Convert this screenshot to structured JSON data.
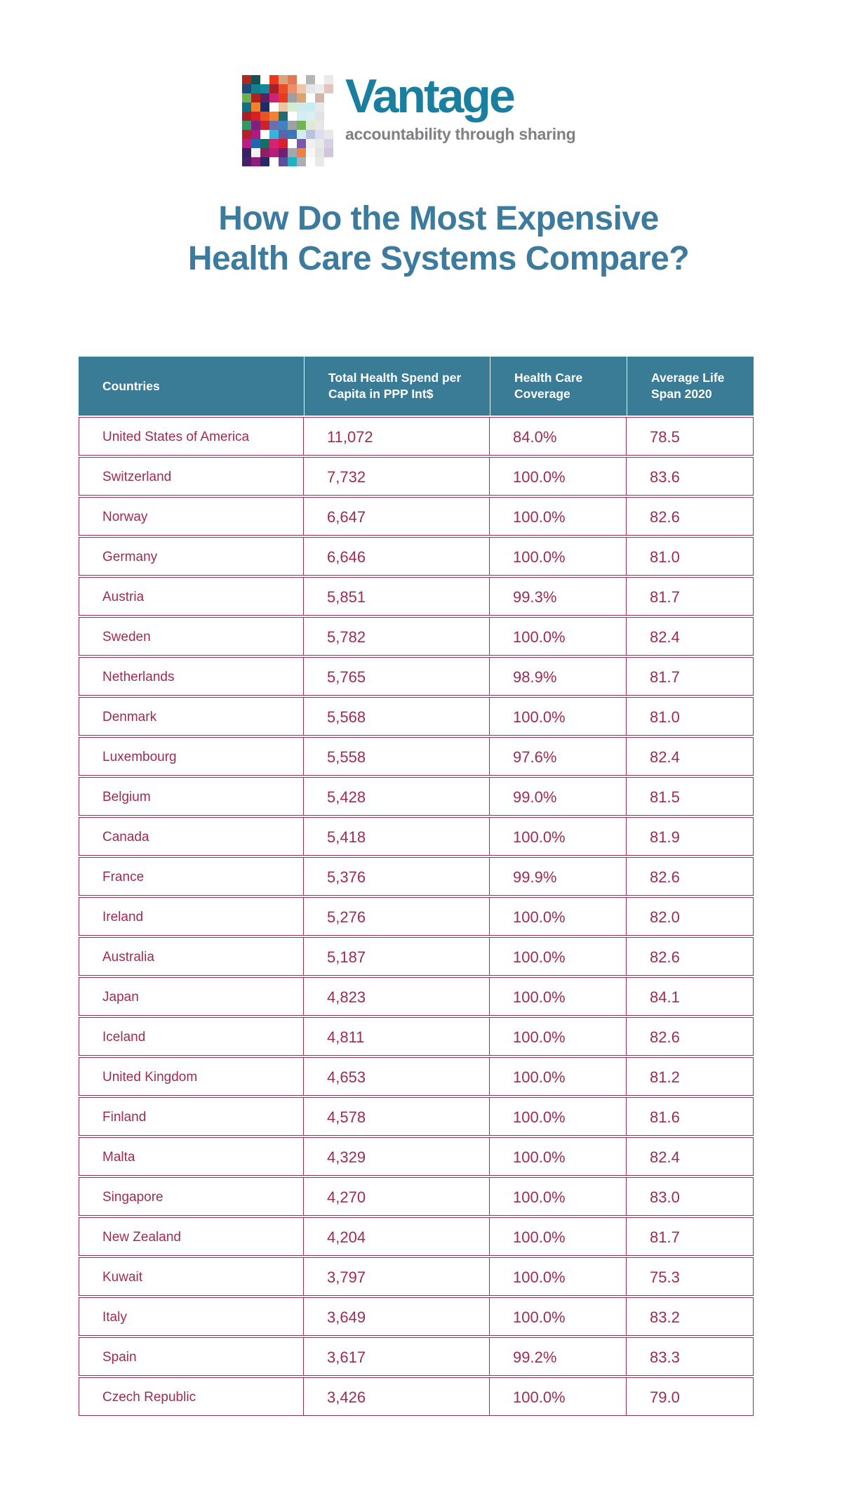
{
  "logo": {
    "name": "Vantage",
    "tagline": "accountability through sharing",
    "mosaic": [
      [
        "#b0271e",
        "#1b4f50",
        "#ffffff",
        "#e8391b",
        "#d9a47b",
        "#e07a52",
        "#ffffff",
        "#b5b5b5",
        "#ffffff",
        "#eaeaea"
      ],
      [
        "#1d4a7a",
        "#13808c",
        "#11899a",
        "#a81f26",
        "#ea4c25",
        "#e98f6d",
        "#eec4a6",
        "#e2e6e7",
        "#ededed",
        "#e4c4c1"
      ],
      [
        "#6cb24c",
        "#b2211f",
        "#5e2160",
        "#cd2478",
        "#e93a1f",
        "#9ba0a3",
        "#dfa26c",
        "#ffffff",
        "#d2b5a6",
        "#ffffff"
      ],
      [
        "#0e7080",
        "#ee8231",
        "#1c2b69",
        "#ffffff",
        "#ecc5a3",
        "#d7ead2",
        "#cfe9ef",
        "#c9ecf2",
        "#e9e9e9",
        "#ffffff"
      ],
      [
        "#ad1d25",
        "#d42027",
        "#e8541f",
        "#f08232",
        "#226b72",
        "#ffffff",
        "#d4ecf2",
        "#dbeef3",
        "#e2e2e2",
        "#ffffff"
      ],
      [
        "#2d9a63",
        "#7c2180",
        "#cf2127",
        "#6b6fae",
        "#3c85c4",
        "#9ba1a6",
        "#72b354",
        "#dcead5",
        "#e8e8e8",
        "#ffffff"
      ],
      [
        "#b32025",
        "#b01a7e",
        "#ffffff",
        "#35b5d9",
        "#5b63a9",
        "#3b78b5",
        "#d2ebf2",
        "#b9c2de",
        "#dcdeee",
        "#e8e8e8"
      ],
      [
        "#bf1d7d",
        "#2166ae",
        "#14705f",
        "#d62270",
        "#dc1f2e",
        "#ffffff",
        "#7759a8",
        "#f0f0f0",
        "#e8e8e8",
        "#d6d0e4"
      ],
      [
        "#3c1e63",
        "#f4f4f4",
        "#971b66",
        "#b51f78",
        "#6d2077",
        "#a3a7ab",
        "#ee8142",
        "#f6f6f6",
        "#e4e4e4",
        "#cfc6de"
      ],
      [
        "#44216b",
        "#8c1f7c",
        "#252a66",
        "#ffffff",
        "#5c4f9e",
        "#25aec0",
        "#abafb4",
        "#ffffff",
        "#e9e9e9",
        "#ffffff"
      ]
    ]
  },
  "title": {
    "line1": "How Do the Most Expensive",
    "line2": "Health Care Systems Compare?"
  },
  "colors": {
    "brand": "#1a7f9e",
    "tagline": "#7e8083",
    "title": "#3d7b9e",
    "table_header_bg": "#3a7b96",
    "table_header_text": "#ffffff",
    "table_text": "#a02b52",
    "table_border": "#9e2b52",
    "background": "#ffffff"
  },
  "chart_data": {
    "type": "table",
    "title": "How Do the Most Expensive Health Care Systems Compare?",
    "columns": [
      "Countries",
      "Total Health Spend per Capita in PPP Int$",
      "Health Care Coverage",
      "Average Life Span 2020"
    ],
    "rows": [
      [
        "United States of America",
        "11,072",
        "84.0%",
        "78.5"
      ],
      [
        "Switzerland",
        "7,732",
        "100.0%",
        "83.6"
      ],
      [
        "Norway",
        "6,647",
        "100.0%",
        "82.6"
      ],
      [
        "Germany",
        "6,646",
        "100.0%",
        "81.0"
      ],
      [
        "Austria",
        "5,851",
        "99.3%",
        "81.7"
      ],
      [
        "Sweden",
        "5,782",
        "100.0%",
        "82.4"
      ],
      [
        "Netherlands",
        "5,765",
        "98.9%",
        "81.7"
      ],
      [
        "Denmark",
        "5,568",
        "100.0%",
        "81.0"
      ],
      [
        "Luxembourg",
        "5,558",
        "97.6%",
        "82.4"
      ],
      [
        "Belgium",
        "5,428",
        "99.0%",
        "81.5"
      ],
      [
        "Canada",
        "5,418",
        "100.0%",
        "81.9"
      ],
      [
        "France",
        "5,376",
        "99.9%",
        "82.6"
      ],
      [
        "Ireland",
        "5,276",
        "100.0%",
        "82.0"
      ],
      [
        "Australia",
        "5,187",
        "100.0%",
        "82.6"
      ],
      [
        "Japan",
        "4,823",
        "100.0%",
        "84.1"
      ],
      [
        "Iceland",
        "4,811",
        "100.0%",
        "82.6"
      ],
      [
        "United Kingdom",
        "4,653",
        "100.0%",
        "81.2"
      ],
      [
        "Finland",
        "4,578",
        "100.0%",
        "81.6"
      ],
      [
        "Malta",
        "4,329",
        "100.0%",
        "82.4"
      ],
      [
        "Singapore",
        "4,270",
        "100.0%",
        "83.0"
      ],
      [
        "New Zealand",
        "4,204",
        "100.0%",
        "81.7"
      ],
      [
        "Kuwait",
        "3,797",
        "100.0%",
        "75.3"
      ],
      [
        "Italy",
        "3,649",
        "100.0%",
        "83.2"
      ],
      [
        "Spain",
        "3,617",
        "99.2%",
        "83.3"
      ],
      [
        "Czech Republic",
        "3,426",
        "100.0%",
        "79.0"
      ]
    ]
  }
}
